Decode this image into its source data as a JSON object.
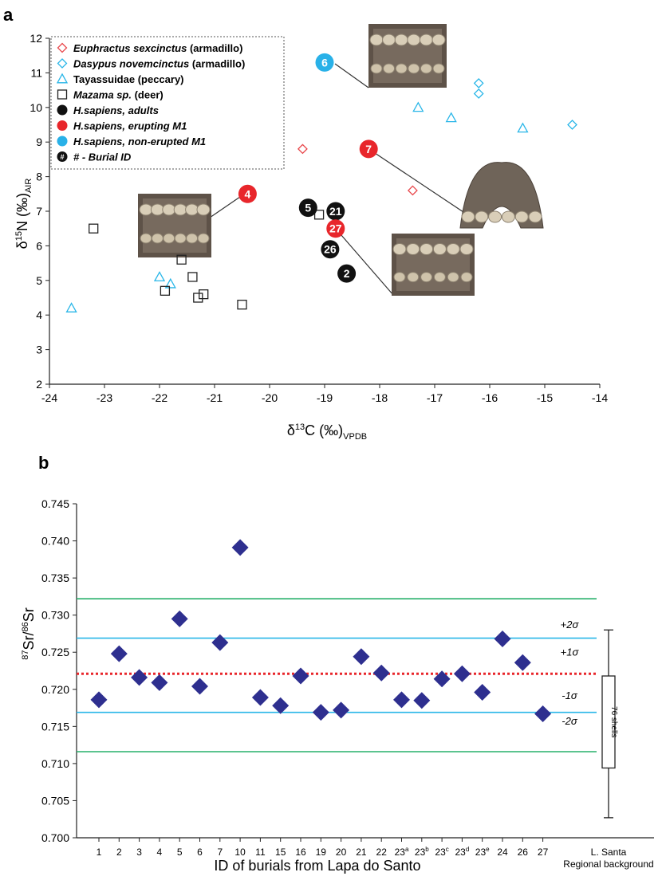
{
  "chart_data": [
    {
      "panel_label": "a",
      "type": "scatter",
      "xlim": [
        -24,
        -14
      ],
      "ylim": [
        2,
        12
      ],
      "xticks": [
        -24,
        -23,
        -22,
        -21,
        -20,
        -19,
        -18,
        -17,
        -16,
        -15,
        -14
      ],
      "yticks": [
        2,
        3,
        4,
        5,
        6,
        7,
        8,
        9,
        10,
        11,
        12
      ],
      "xlabel": {
        "main": "δ",
        "sup": "13",
        "rest": "C (‰)",
        "sub": "VPDB"
      },
      "ylabel": {
        "main": "δ",
        "sup": "15",
        "rest": "N (‰)",
        "sub": "AIR"
      },
      "grid": false,
      "legend_position": "top-left",
      "legend": [
        {
          "marker": "diamond",
          "color": "#e8474b",
          "italic": "Euphractus sexcinctus",
          "text": " (armadillo)"
        },
        {
          "marker": "diamond",
          "color": "#29b6e8",
          "italic": "Dasypus novemcinctus",
          "text": " (armadillo)"
        },
        {
          "marker": "triangle",
          "color": "#29b6e8",
          "italic": "",
          "text": "Tayassuidae (peccary)"
        },
        {
          "marker": "square",
          "color": "#222222",
          "italic": "Mazama sp.",
          "text": " (deer)"
        },
        {
          "marker": "filled-circle",
          "color": "#111111",
          "italic": "H.sapiens, adults",
          "text": ""
        },
        {
          "marker": "filled-circle",
          "color": "#e8262b",
          "italic": "H.sapiens, erupting M1",
          "text": ""
        },
        {
          "marker": "filled-circle",
          "color": "#29b1e8",
          "italic": "H.sapiens, non-erupted M1",
          "text": ""
        },
        {
          "marker": "hash-circle",
          "color": "#111111",
          "italic": "# - Burial ID",
          "text": ""
        }
      ],
      "series": [
        {
          "name": "Euphractus sexcinctus (armadillo)",
          "marker": "diamond",
          "color": "#e8474b",
          "points": [
            [
              -19.4,
              8.8
            ],
            [
              -17.4,
              7.6
            ]
          ]
        },
        {
          "name": "Dasypus novemcinctus (armadillo)",
          "marker": "diamond",
          "color": "#29b6e8",
          "points": [
            [
              -16.2,
              10.7
            ],
            [
              -16.2,
              10.4
            ],
            [
              -14.5,
              9.5
            ]
          ]
        },
        {
          "name": "Tayassuidae (peccary)",
          "marker": "triangle",
          "color": "#29b6e8",
          "points": [
            [
              -23.6,
              4.2
            ],
            [
              -22.0,
              5.1
            ],
            [
              -21.8,
              4.9
            ],
            [
              -17.3,
              10.0
            ],
            [
              -16.7,
              9.7
            ],
            [
              -15.4,
              9.4
            ]
          ]
        },
        {
          "name": "Mazama sp. (deer)",
          "marker": "square",
          "color": "#222222",
          "points": [
            [
              -23.2,
              6.5
            ],
            [
              -21.9,
              4.7
            ],
            [
              -21.6,
              5.6
            ],
            [
              -21.4,
              5.1
            ],
            [
              -21.3,
              4.5
            ],
            [
              -21.2,
              4.6
            ],
            [
              -20.5,
              4.3
            ],
            [
              -19.1,
              6.9
            ]
          ]
        },
        {
          "name": "H.sapiens, adults",
          "marker": "filled-circle",
          "color": "#111111",
          "points": [
            [
              -19.3,
              7.1,
              "5"
            ],
            [
              -18.8,
              7.0,
              "21"
            ],
            [
              -18.9,
              5.9,
              "26"
            ],
            [
              -18.6,
              5.2,
              "2"
            ]
          ]
        },
        {
          "name": "H.sapiens, erupting M1",
          "marker": "filled-circle",
          "color": "#e8262b",
          "points": [
            [
              -20.4,
              7.5,
              "4"
            ],
            [
              -18.8,
              6.5,
              "27"
            ],
            [
              -18.2,
              8.8,
              "7"
            ]
          ]
        },
        {
          "name": "H.sapiens, non-erupted M1",
          "marker": "filled-circle",
          "color": "#29b1e8",
          "points": [
            [
              -19.0,
              11.3,
              "6"
            ]
          ]
        }
      ]
    },
    {
      "panel_label": "b",
      "type": "scatter",
      "ylim": [
        0.7,
        0.745
      ],
      "yticks": [
        "0.700",
        "0.705",
        "0.710",
        "0.715",
        "0.720",
        "0.725",
        "0.730",
        "0.735",
        "0.740",
        "0.745"
      ],
      "categories": [
        "1",
        "2",
        "3",
        "4",
        "5",
        "6",
        "7",
        "10",
        "11",
        "15",
        "16",
        "19",
        "20",
        "21",
        "22",
        "23",
        "23",
        "23",
        "23",
        "23",
        "24",
        "26",
        "27"
      ],
      "category_superscripts": [
        "",
        "",
        "",
        "",
        "",
        "",
        "",
        "",
        "",
        "",
        "",
        "",
        "",
        "",
        "",
        "a",
        "b",
        "c",
        "d",
        "e",
        "",
        "",
        ""
      ],
      "values": [
        0.7186,
        0.7248,
        0.7216,
        0.7209,
        0.7295,
        0.7204,
        0.7263,
        0.7391,
        0.7189,
        0.7178,
        0.7218,
        0.7169,
        0.7172,
        0.7244,
        0.7222,
        0.7186,
        0.7185,
        0.7214,
        0.7221,
        0.7196,
        0.7268,
        0.7236,
        0.7167
      ],
      "marker": "diamond",
      "marker_color": "#2e2f8f",
      "xlabel": "ID of burials from Lapa do Santo",
      "ylabel": {
        "sup1": "87",
        "a": "Sr/",
        "sup2": "86",
        "b": "Sr"
      },
      "reference_lines": [
        {
          "value": 0.7322,
          "color": "#27b06a",
          "style": "solid"
        },
        {
          "value": 0.7269,
          "color": "#29b6e8",
          "style": "solid"
        },
        {
          "value": 0.7221,
          "color": "#e8262b",
          "style": "dotted"
        },
        {
          "value": 0.7169,
          "color": "#29b6e8",
          "style": "solid"
        },
        {
          "value": 0.7116,
          "color": "#27b06a",
          "style": "solid"
        }
      ],
      "sigma_labels": [
        {
          "text": "+2σ",
          "value": 0.7288
        },
        {
          "text": "+1σ",
          "value": 0.7251
        },
        {
          "text": "-1σ",
          "value": 0.7192
        },
        {
          "text": "-2σ",
          "value": 0.7158
        }
      ],
      "boxplot": {
        "category_label_line1": "L. Santa",
        "category_label_line2": "Regional background",
        "whisker_low": 0.7027,
        "q1": 0.7094,
        "q3": 0.7218,
        "whisker_high": 0.728,
        "label": "76 shells"
      }
    }
  ]
}
